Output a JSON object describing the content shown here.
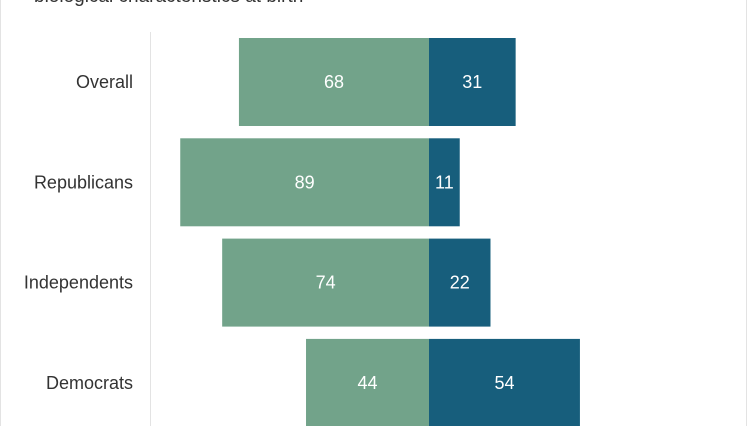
{
  "chart_data": {
    "type": "bar",
    "orientation": "horizontal-diverging",
    "title": "biological characteristics at birth",
    "categories": [
      "Overall",
      "Republicans",
      "Independents",
      "Democrats"
    ],
    "series": [
      {
        "values": [
          68,
          89,
          74,
          44
        ],
        "color": "#72a38a"
      },
      {
        "values": [
          31,
          11,
          22,
          54
        ],
        "color": "#175e7c"
      }
    ],
    "grid": false,
    "legend": "none"
  }
}
